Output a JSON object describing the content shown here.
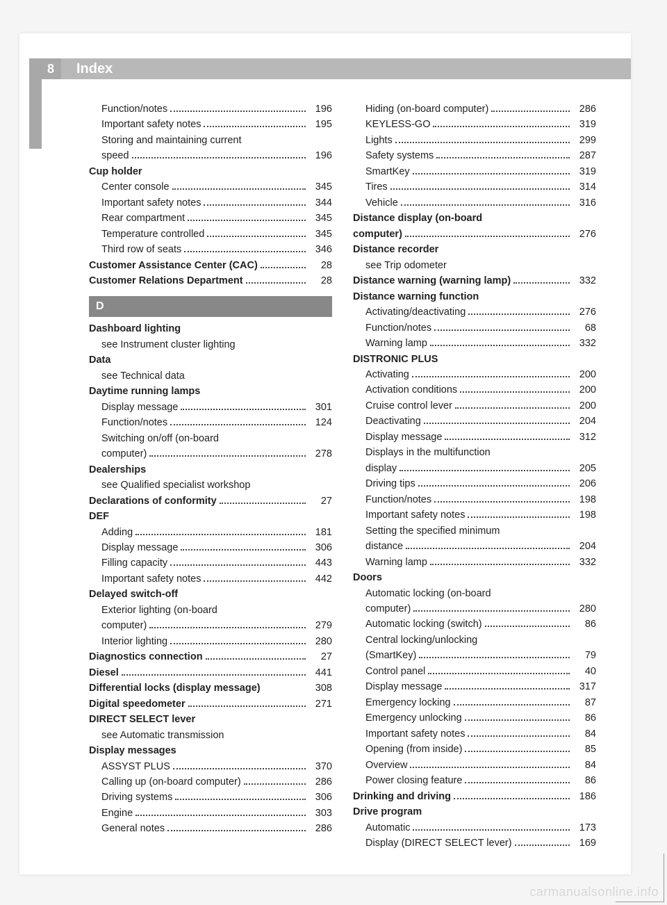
{
  "page_number": "8",
  "header_title": "Index",
  "watermark": "carmanualsonline.info",
  "section_letter": "D",
  "colors": {
    "page_bg": "#ffffff",
    "body_bg": "#f5f5f5",
    "header_bar": "#b8b8b8",
    "pagenum_bar": "#a8a8a8",
    "section_bg": "#888888",
    "text": "#222222"
  },
  "left_column": [
    {
      "type": "entry",
      "sub": true,
      "bold": false,
      "label": "Function/notes",
      "page": "196"
    },
    {
      "type": "entry",
      "sub": true,
      "bold": false,
      "label": "Important safety notes",
      "page": "195"
    },
    {
      "type": "wrap",
      "sub": true,
      "bold": false,
      "label": "Storing and maintaining current"
    },
    {
      "type": "entry",
      "sub": true,
      "bold": false,
      "label": "speed",
      "page": "196"
    },
    {
      "type": "heading",
      "label": "Cup holder"
    },
    {
      "type": "entry",
      "sub": true,
      "bold": false,
      "label": "Center console",
      "page": "345"
    },
    {
      "type": "entry",
      "sub": true,
      "bold": false,
      "label": "Important safety notes",
      "page": "344"
    },
    {
      "type": "entry",
      "sub": true,
      "bold": false,
      "label": "Rear compartment",
      "page": "345"
    },
    {
      "type": "entry",
      "sub": true,
      "bold": false,
      "label": "Temperature controlled",
      "page": "345"
    },
    {
      "type": "entry",
      "sub": true,
      "bold": false,
      "label": "Third row of seats",
      "page": "346"
    },
    {
      "type": "entry",
      "sub": false,
      "bold": true,
      "label": "Customer Assistance Center (CAC)",
      "page": "28"
    },
    {
      "type": "entry",
      "sub": false,
      "bold": true,
      "label": "Customer Relations Department",
      "page": "28"
    },
    {
      "type": "section"
    },
    {
      "type": "heading",
      "label": "Dashboard lighting"
    },
    {
      "type": "see",
      "label": "see Instrument cluster lighting"
    },
    {
      "type": "heading",
      "label": "Data"
    },
    {
      "type": "see",
      "label": "see Technical data"
    },
    {
      "type": "heading",
      "label": "Daytime running lamps"
    },
    {
      "type": "entry",
      "sub": true,
      "bold": false,
      "label": "Display message",
      "page": "301"
    },
    {
      "type": "entry",
      "sub": true,
      "bold": false,
      "label": "Function/notes",
      "page": "124"
    },
    {
      "type": "wrap",
      "sub": true,
      "bold": false,
      "label": "Switching on/off (on-board"
    },
    {
      "type": "entry",
      "sub": true,
      "bold": false,
      "label": "computer)",
      "page": "278"
    },
    {
      "type": "heading",
      "label": "Dealerships"
    },
    {
      "type": "see",
      "label": "see Qualified specialist workshop"
    },
    {
      "type": "entry",
      "sub": false,
      "bold": true,
      "label": "Declarations of conformity",
      "page": "27"
    },
    {
      "type": "heading",
      "label": "DEF"
    },
    {
      "type": "entry",
      "sub": true,
      "bold": false,
      "label": "Adding",
      "page": "181"
    },
    {
      "type": "entry",
      "sub": true,
      "bold": false,
      "label": "Display message",
      "page": "306"
    },
    {
      "type": "entry",
      "sub": true,
      "bold": false,
      "label": "Filling capacity",
      "page": "443"
    },
    {
      "type": "entry",
      "sub": true,
      "bold": false,
      "label": "Important safety notes",
      "page": "442"
    },
    {
      "type": "heading",
      "label": "Delayed switch-off"
    },
    {
      "type": "wrap",
      "sub": true,
      "bold": false,
      "label": "Exterior lighting (on-board"
    },
    {
      "type": "entry",
      "sub": true,
      "bold": false,
      "label": "computer)",
      "page": "279"
    },
    {
      "type": "entry",
      "sub": true,
      "bold": false,
      "label": "Interior lighting",
      "page": "280"
    },
    {
      "type": "entry",
      "sub": false,
      "bold": true,
      "label": "Diagnostics connection",
      "page": "27"
    },
    {
      "type": "entry",
      "sub": false,
      "bold": true,
      "label": "Diesel",
      "page": "441"
    },
    {
      "type": "entry",
      "sub": false,
      "bold": true,
      "label": "Differential locks (display message)",
      "page": "308",
      "nodots": true
    },
    {
      "type": "entry",
      "sub": false,
      "bold": true,
      "label": "Digital speedometer",
      "page": "271"
    },
    {
      "type": "heading",
      "label": "DIRECT SELECT lever"
    },
    {
      "type": "see",
      "label": "see Automatic transmission"
    },
    {
      "type": "heading",
      "label": "Display messages"
    },
    {
      "type": "entry",
      "sub": true,
      "bold": false,
      "label": "ASSYST PLUS",
      "page": "370"
    },
    {
      "type": "entry",
      "sub": true,
      "bold": false,
      "label": "Calling up (on-board computer)",
      "page": "286"
    },
    {
      "type": "entry",
      "sub": true,
      "bold": false,
      "label": "Driving systems",
      "page": "306"
    },
    {
      "type": "entry",
      "sub": true,
      "bold": false,
      "label": "Engine",
      "page": "303"
    },
    {
      "type": "entry",
      "sub": true,
      "bold": false,
      "label": "General notes",
      "page": "286"
    }
  ],
  "right_column": [
    {
      "type": "entry",
      "sub": true,
      "bold": false,
      "label": "Hiding (on-board computer)",
      "page": "286"
    },
    {
      "type": "entry",
      "sub": true,
      "bold": false,
      "label": "KEYLESS-GO",
      "page": "319"
    },
    {
      "type": "entry",
      "sub": true,
      "bold": false,
      "label": "Lights",
      "page": "299"
    },
    {
      "type": "entry",
      "sub": true,
      "bold": false,
      "label": "Safety systems",
      "page": "287"
    },
    {
      "type": "entry",
      "sub": true,
      "bold": false,
      "label": "SmartKey",
      "page": "319"
    },
    {
      "type": "entry",
      "sub": true,
      "bold": false,
      "label": "Tires",
      "page": "314"
    },
    {
      "type": "entry",
      "sub": true,
      "bold": false,
      "label": "Vehicle",
      "page": "316"
    },
    {
      "type": "wrap",
      "sub": false,
      "bold": true,
      "label": "Distance display (on-board"
    },
    {
      "type": "entry",
      "sub": false,
      "bold": true,
      "label": "computer)",
      "page": "276"
    },
    {
      "type": "heading",
      "label": "Distance recorder"
    },
    {
      "type": "see",
      "label": "see Trip odometer"
    },
    {
      "type": "entry",
      "sub": false,
      "bold": true,
      "label": "Distance warning (warning lamp)",
      "page": "332"
    },
    {
      "type": "heading",
      "label": "Distance warning function"
    },
    {
      "type": "entry",
      "sub": true,
      "bold": false,
      "label": "Activating/deactivating",
      "page": "276"
    },
    {
      "type": "entry",
      "sub": true,
      "bold": false,
      "label": "Function/notes",
      "page": "68"
    },
    {
      "type": "entry",
      "sub": true,
      "bold": false,
      "label": "Warning lamp",
      "page": "332"
    },
    {
      "type": "heading",
      "label": "DISTRONIC PLUS"
    },
    {
      "type": "entry",
      "sub": true,
      "bold": false,
      "label": "Activating",
      "page": "200"
    },
    {
      "type": "entry",
      "sub": true,
      "bold": false,
      "label": "Activation conditions",
      "page": "200"
    },
    {
      "type": "entry",
      "sub": true,
      "bold": false,
      "label": "Cruise control lever",
      "page": "200"
    },
    {
      "type": "entry",
      "sub": true,
      "bold": false,
      "label": "Deactivating",
      "page": "204"
    },
    {
      "type": "entry",
      "sub": true,
      "bold": false,
      "label": "Display message",
      "page": "312"
    },
    {
      "type": "wrap",
      "sub": true,
      "bold": false,
      "label": "Displays in the multifunction"
    },
    {
      "type": "entry",
      "sub": true,
      "bold": false,
      "label": "display",
      "page": "205"
    },
    {
      "type": "entry",
      "sub": true,
      "bold": false,
      "label": "Driving tips",
      "page": "206"
    },
    {
      "type": "entry",
      "sub": true,
      "bold": false,
      "label": "Function/notes",
      "page": "198"
    },
    {
      "type": "entry",
      "sub": true,
      "bold": false,
      "label": "Important safety notes",
      "page": "198"
    },
    {
      "type": "wrap",
      "sub": true,
      "bold": false,
      "label": "Setting the specified minimum"
    },
    {
      "type": "entry",
      "sub": true,
      "bold": false,
      "label": "distance",
      "page": "204"
    },
    {
      "type": "entry",
      "sub": true,
      "bold": false,
      "label": "Warning lamp",
      "page": "332"
    },
    {
      "type": "heading",
      "label": "Doors"
    },
    {
      "type": "wrap",
      "sub": true,
      "bold": false,
      "label": "Automatic locking (on-board"
    },
    {
      "type": "entry",
      "sub": true,
      "bold": false,
      "label": "computer)",
      "page": "280"
    },
    {
      "type": "entry",
      "sub": true,
      "bold": false,
      "label": "Automatic locking (switch)",
      "page": "86"
    },
    {
      "type": "wrap",
      "sub": true,
      "bold": false,
      "label": "Central locking/unlocking"
    },
    {
      "type": "entry",
      "sub": true,
      "bold": false,
      "label": "(SmartKey)",
      "page": "79"
    },
    {
      "type": "entry",
      "sub": true,
      "bold": false,
      "label": "Control panel",
      "page": "40"
    },
    {
      "type": "entry",
      "sub": true,
      "bold": false,
      "label": "Display message",
      "page": "317"
    },
    {
      "type": "entry",
      "sub": true,
      "bold": false,
      "label": "Emergency locking",
      "page": "87"
    },
    {
      "type": "entry",
      "sub": true,
      "bold": false,
      "label": "Emergency unlocking",
      "page": "86"
    },
    {
      "type": "entry",
      "sub": true,
      "bold": false,
      "label": "Important safety notes",
      "page": "84"
    },
    {
      "type": "entry",
      "sub": true,
      "bold": false,
      "label": "Opening (from inside)",
      "page": "85"
    },
    {
      "type": "entry",
      "sub": true,
      "bold": false,
      "label": "Overview",
      "page": "84"
    },
    {
      "type": "entry",
      "sub": true,
      "bold": false,
      "label": "Power closing feature",
      "page": "86"
    },
    {
      "type": "entry",
      "sub": false,
      "bold": true,
      "label": "Drinking and driving",
      "page": "186"
    },
    {
      "type": "heading",
      "label": "Drive program"
    },
    {
      "type": "entry",
      "sub": true,
      "bold": false,
      "label": "Automatic",
      "page": "173"
    },
    {
      "type": "entry",
      "sub": true,
      "bold": false,
      "label": "Display (DIRECT SELECT lever)",
      "page": "169"
    }
  ]
}
